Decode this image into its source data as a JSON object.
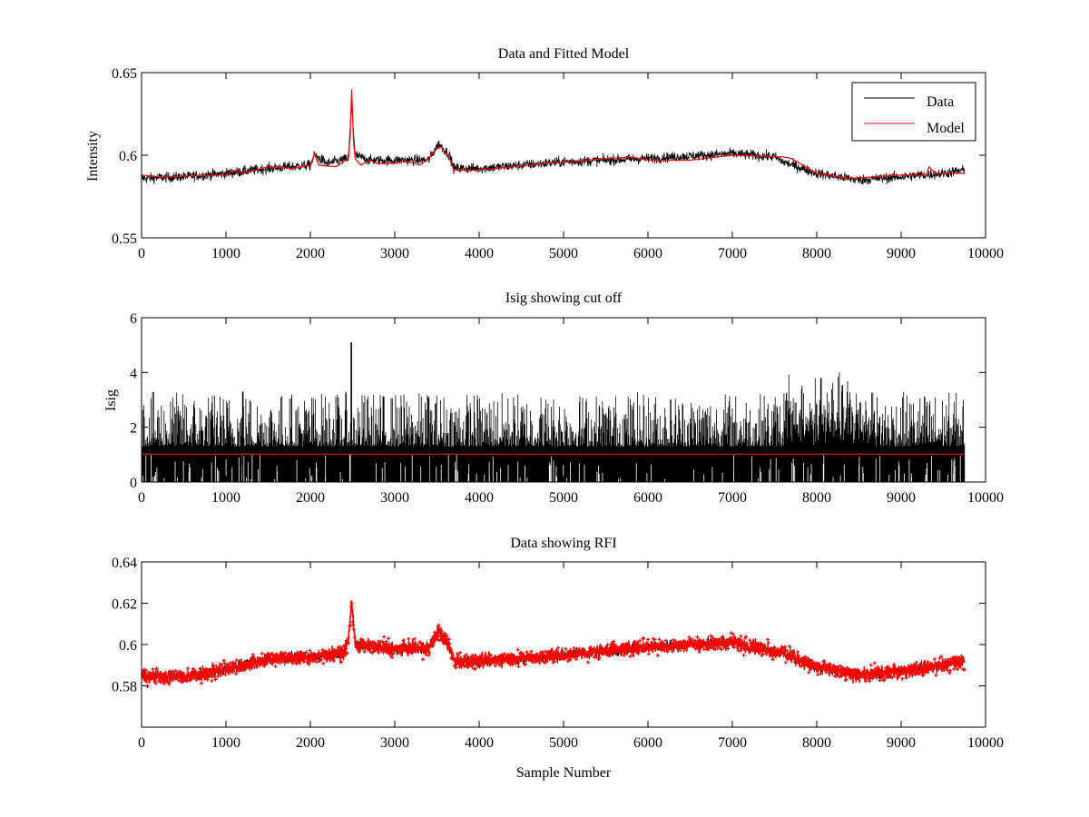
{
  "figure": {
    "background": "#ffffff",
    "line_color": "#000000",
    "model_color": "#ff0000"
  },
  "chart_data": [
    {
      "type": "line",
      "title": "Data and Fitted Model",
      "xlabel": "",
      "ylabel": "Intensity",
      "xlim": [
        0,
        10000
      ],
      "ylim": [
        0.55,
        0.65
      ],
      "xticks": [
        0,
        1000,
        2000,
        3000,
        4000,
        5000,
        6000,
        7000,
        8000,
        9000,
        10000
      ],
      "xtick_labels": [
        "0",
        "1000",
        "2000",
        "3000",
        "4000",
        "5000",
        "6000",
        "7000",
        "8000",
        "9000",
        "10000"
      ],
      "yticks": [
        0.55,
        0.6,
        0.65
      ],
      "ytick_labels": [
        "0.55",
        "0.6",
        "0.65"
      ],
      "legend": {
        "placement": "top-right",
        "entries": [
          "Data",
          "Model"
        ]
      },
      "series": [
        {
          "name": "Data",
          "color": "#000000",
          "style": "noisy-line",
          "x": [
            0,
            500,
            1000,
            1500,
            2000,
            2050,
            2200,
            2450,
            2490,
            2530,
            2700,
            3000,
            3400,
            3520,
            3650,
            3700,
            4000,
            5000,
            6000,
            7000,
            7500,
            7600,
            8000,
            8500,
            9000,
            9500,
            9750
          ],
          "y": [
            0.586,
            0.587,
            0.589,
            0.592,
            0.594,
            0.6,
            0.595,
            0.598,
            0.632,
            0.6,
            0.597,
            0.597,
            0.597,
            0.607,
            0.6,
            0.592,
            0.592,
            0.596,
            0.598,
            0.601,
            0.599,
            0.596,
            0.589,
            0.585,
            0.587,
            0.589,
            0.591
          ],
          "noise_amplitude": 0.0055
        },
        {
          "name": "Model",
          "color": "#ff0000",
          "style": "line",
          "x": [
            0,
            200,
            1000,
            1100,
            1200,
            1500,
            1800,
            2000,
            2050,
            2100,
            2300,
            2450,
            2470,
            2490,
            2510,
            2530,
            2600,
            2700,
            2800,
            3000,
            3100,
            3300,
            3400,
            3500,
            3550,
            3650,
            3700,
            4000,
            5000,
            5800,
            6000,
            6500,
            7000,
            7600,
            7700,
            8000,
            8400,
            9000,
            9300,
            9330,
            9400,
            9750
          ],
          "y": [
            0.588,
            0.587,
            0.588,
            0.591,
            0.589,
            0.593,
            0.592,
            0.594,
            0.601,
            0.594,
            0.593,
            0.598,
            0.61,
            0.64,
            0.61,
            0.598,
            0.594,
            0.597,
            0.595,
            0.595,
            0.597,
            0.594,
            0.598,
            0.604,
            0.605,
            0.598,
            0.591,
            0.591,
            0.596,
            0.599,
            0.597,
            0.597,
            0.6,
            0.599,
            0.598,
            0.589,
            0.586,
            0.588,
            0.588,
            0.593,
            0.589,
            0.589
          ]
        }
      ]
    },
    {
      "type": "line",
      "title": "Isig showing cut off",
      "xlabel": "",
      "ylabel": "Isig",
      "xlim": [
        0,
        10000
      ],
      "ylim": [
        0,
        6
      ],
      "xticks": [
        0,
        1000,
        2000,
        3000,
        4000,
        5000,
        6000,
        7000,
        8000,
        9000,
        10000
      ],
      "xtick_labels": [
        "0",
        "1000",
        "2000",
        "3000",
        "4000",
        "5000",
        "6000",
        "7000",
        "8000",
        "9000",
        "10000"
      ],
      "yticks": [
        0,
        2,
        4,
        6
      ],
      "ytick_labels": [
        "0",
        "2",
        "4",
        "6"
      ],
      "series": [
        {
          "name": "Isig",
          "color": "#000000",
          "style": "dense-spikes",
          "x_end": 9750,
          "band_max": 1.3,
          "spike_max": 3.3,
          "bumps": [
            {
              "x": 2485,
              "y": 5.1
            },
            {
              "x": 8050,
              "y": 3.8
            },
            {
              "x": 8300,
              "y": 3.3
            },
            {
              "x": 3400,
              "y": 3.1
            },
            {
              "x": 1200,
              "y": 3.3
            }
          ]
        },
        {
          "name": "Cut off",
          "color": "#ff0000",
          "style": "line",
          "x": [
            0,
            9750
          ],
          "y": [
            1.02,
            1.02
          ]
        }
      ]
    },
    {
      "type": "scatter",
      "title": "Data showing RFI",
      "xlabel": "Sample Number",
      "ylabel": "",
      "xlim": [
        0,
        10000
      ],
      "ylim": [
        0.56,
        0.64
      ],
      "xticks": [
        0,
        1000,
        2000,
        3000,
        4000,
        5000,
        6000,
        7000,
        8000,
        9000,
        10000
      ],
      "xtick_labels": [
        "0",
        "1000",
        "2000",
        "3000",
        "4000",
        "5000",
        "6000",
        "7000",
        "8000",
        "9000",
        "10000"
      ],
      "yticks": [
        0.58,
        0.6,
        0.62,
        0.64
      ],
      "ytick_labels": [
        "0.58",
        "0.6",
        "0.62",
        "0.64"
      ],
      "series": [
        {
          "name": "Data showing RFI",
          "color": "#ff0000",
          "style": "marker-band",
          "x": [
            0,
            500,
            1000,
            1500,
            2000,
            2400,
            2450,
            2490,
            2530,
            2700,
            3000,
            3400,
            3520,
            3650,
            3700,
            4000,
            5000,
            6000,
            7000,
            7600,
            8000,
            8500,
            9000,
            9500,
            9750
          ],
          "y": [
            0.585,
            0.584,
            0.588,
            0.593,
            0.594,
            0.596,
            0.602,
            0.621,
            0.6,
            0.599,
            0.598,
            0.598,
            0.607,
            0.599,
            0.592,
            0.592,
            0.595,
            0.599,
            0.601,
            0.596,
            0.589,
            0.585,
            0.587,
            0.59,
            0.592
          ],
          "noise_amplitude": 0.0055
        }
      ]
    }
  ]
}
